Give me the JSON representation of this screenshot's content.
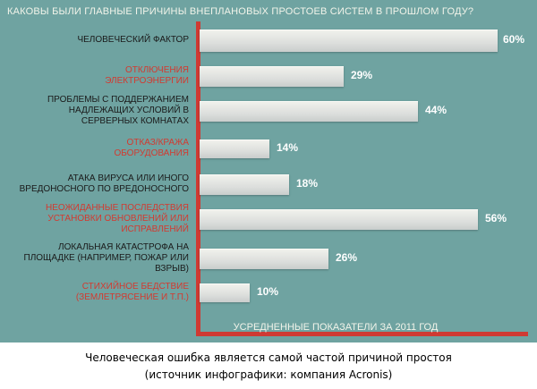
{
  "chart_data": {
    "type": "bar",
    "orientation": "horizontal",
    "title": "КАКОВЫ БЫЛИ ГЛАВНЫЕ ПРИЧИНЫ ВНЕПЛАНОВЫХ ПРОСТОЕВ СИСТЕМ В ПРОШЛОМ ГОДУ?",
    "xlabel": "УСРЕДНЕННЫЕ ПОКАЗАТЕЛИ ЗА 2011 ГОД",
    "xlim": [
      0,
      60
    ],
    "categories": [
      "ЧЕЛОВЕЧЕСКИЙ ФАКТОР",
      "ОТКЛЮЧЕНИЯ ЭЛЕКТРОЭНЕРГИИ",
      "ПРОБЛЕМЫ С ПОДДЕРЖАНИЕМ НАДЛЕЖАЩИХ УСЛОВИЙ В СЕРВЕРНЫХ КОМНАТАХ",
      "ОТКАЗ/КРАЖА ОБОРУДОВАНИЯ",
      "АТАКА ВИРУСА ИЛИ ИНОГО ВРЕДОНОСНОГО ПО ВРЕДОНОСНОГО",
      "НЕОЖИДАННЫЕ ПОСЛЕДСТВИЯ УСТАНОВКИ ОБНОВЛЕНИЙ ИЛИ ИСПРАВЛЕНИЙ",
      "ЛОКАЛЬНАЯ КАТАСТРОФА НА ПЛОЩАДКЕ (НАПРИМЕР, ПОЖАР ИЛИ ВЗРЫВ)",
      "СТИХИЙНОЕ БЕДСТВИЕ (ЗЕМЛЕТРЯСЕНИЕ И Т.П.)"
    ],
    "label_lines": [
      [
        "ЧЕЛОВЕЧЕСКИЙ ФАКТОР"
      ],
      [
        "ОТКЛЮЧЕНИЯ",
        "ЭЛЕКТРОЭНЕРГИИ"
      ],
      [
        "ПРОБЛЕМЫ С ПОДДЕРЖАНИЕМ",
        "НАДЛЕЖАЩИХ УСЛОВИЙ В",
        "СЕРВЕРНЫХ КОМНАТАХ"
      ],
      [
        "ОТКАЗ/КРАЖА",
        "ОБОРУДОВАНИЯ"
      ],
      [
        "АТАКА ВИРУСА ИЛИ ИНОГО",
        "ВРЕДОНОСНОГО ПО ВРЕДОНОСНОГО"
      ],
      [
        "НЕОЖИДАННЫЕ ПОСЛЕДСТВИЯ",
        "УСТАНОВКИ ОБНОВЛЕНИЙ ИЛИ",
        "ИСПРАВЛЕНИЙ"
      ],
      [
        "ЛОКАЛЬНАЯ КАТАСТРОФА НА",
        "ПЛОЩАДКЕ (НАПРИМЕР, ПОЖАР ИЛИ",
        "ВЗРЫВ)"
      ],
      [
        "СТИХИЙНОЕ БЕДСТВИЕ",
        "(ЗЕМЛЕТРЯСЕНИЕ И Т.П.)"
      ]
    ],
    "values": [
      60,
      29,
      44,
      14,
      18,
      56,
      26,
      10
    ],
    "value_labels": [
      "60%",
      "29%",
      "44%",
      "14%",
      "18%",
      "56%",
      "26%",
      "10%"
    ],
    "label_styles": [
      "normal",
      "highlighted",
      "normal",
      "highlighted",
      "normal",
      "highlighted",
      "normal",
      "highlighted"
    ],
    "grid": false
  },
  "caption": {
    "line1": "Человеческая ошибка является самой частой причиной простоя",
    "line2": "(источник инфографики: компания Acronis)"
  },
  "colors": {
    "background": "#6fa3a1",
    "axis": "#cf3a33",
    "bar": "#e4e6e3",
    "label_normal": "#1a1a1a",
    "label_highlighted": "#d23a30",
    "value_text": "#ffffff",
    "title_text": "#f2f4ea"
  }
}
